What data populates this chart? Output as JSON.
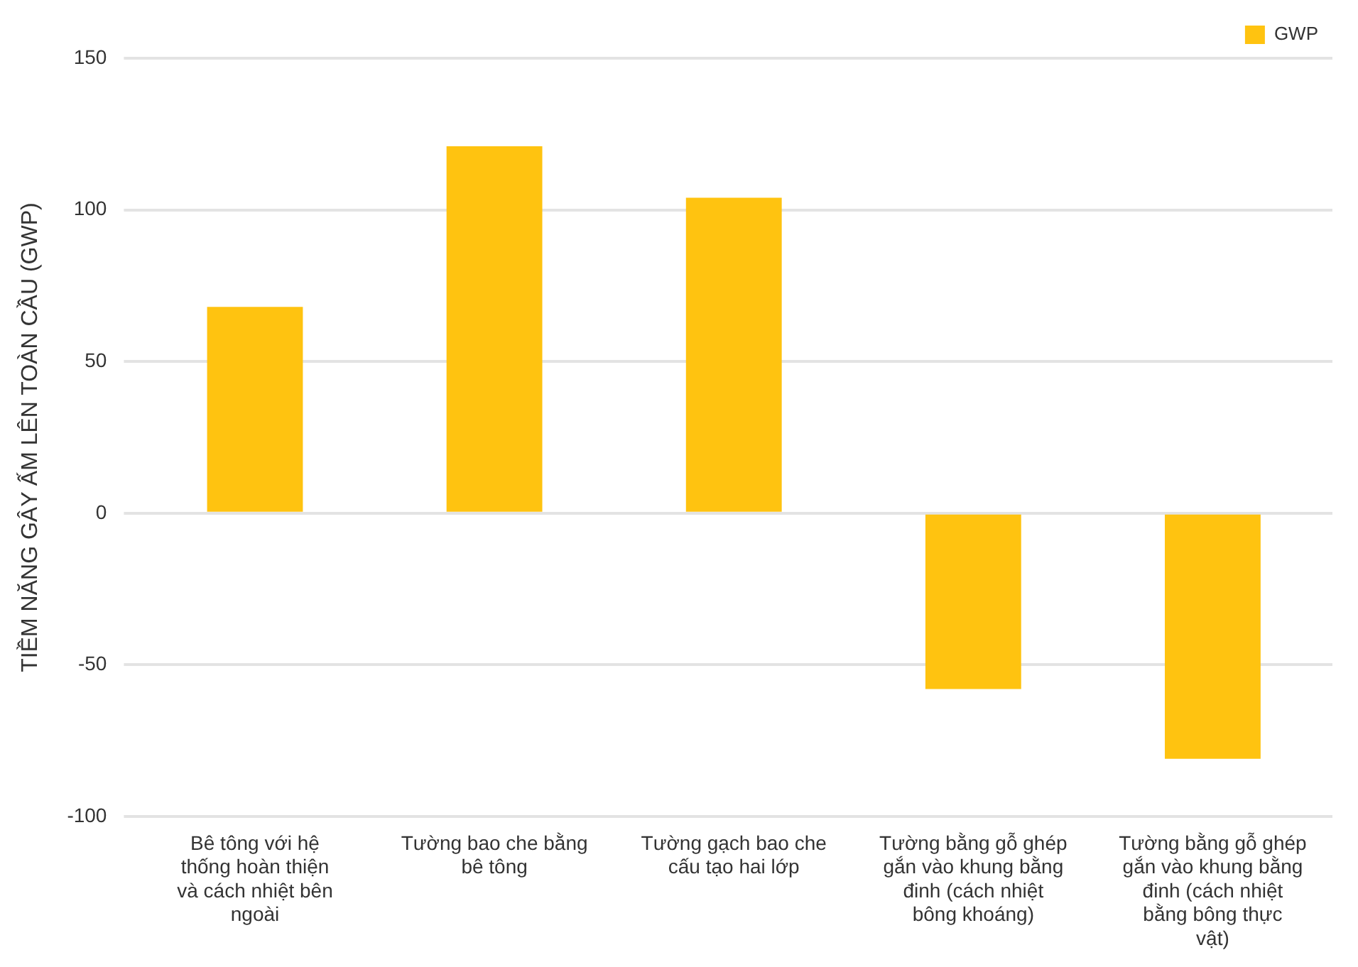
{
  "chart_data": {
    "type": "bar",
    "ylabel": "TIỀM NĂNG GÂY ẤM LÊN TOÀN CẦU (GWP)",
    "categories": [
      "Bê tông với hệ thống hoàn thiện và cách nhiệt bên ngoài",
      "Tường bao che bằng bê tông",
      "Tường gạch bao che cấu tạo hai lớp",
      "Tường bằng gỗ ghép gắn vào khung bằng đinh (cách nhiệt bông khoáng)",
      "Tường bằng gỗ ghép gắn vào khung bằng đinh (cách nhiệt bằng bông thực vật)"
    ],
    "series": [
      {
        "name": "GWP",
        "color": "#ffc310",
        "values": [
          68,
          121,
          104,
          -58,
          -81
        ]
      }
    ],
    "ylim": [
      -100,
      150
    ],
    "yticks": [
      -100,
      -50,
      0,
      50,
      100,
      150
    ],
    "grid": "y",
    "legend": "top right"
  }
}
